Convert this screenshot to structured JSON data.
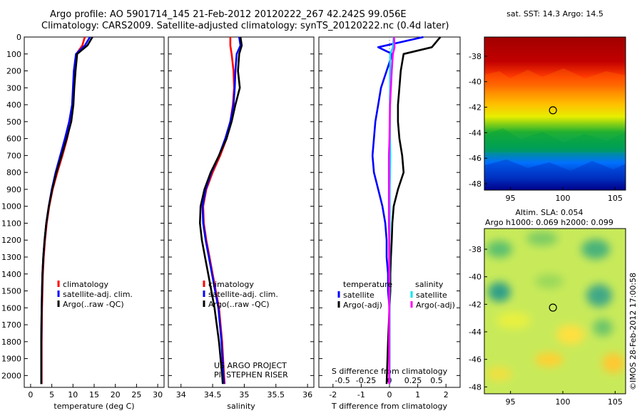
{
  "header": {
    "line1": "Argo profile: AO 5901714_145 21-Feb-2012 20120222_267 42.242S 99.056E",
    "line2": "Climatology: CARS2009. Satellite-adjusted climatology: synTS_20120222.nc (0.4d later)"
  },
  "colors": {
    "climatology": "#ff0000",
    "satellite": "#0000ff",
    "argo": "#000000",
    "sal_satellite": "#00e5ee",
    "sal_argo": "#ff00ff"
  },
  "chart_data": [
    {
      "type": "line",
      "id": "temperature",
      "xlabel": "temperature (deg C)",
      "ylabel": "",
      "xlim": [
        -1.5,
        31.5
      ],
      "xticks": [
        0,
        5,
        10,
        15,
        20,
        25,
        30
      ],
      "ylim": [
        2070,
        0
      ],
      "yticks": [
        0,
        100,
        200,
        300,
        400,
        500,
        600,
        700,
        800,
        900,
        1000,
        1100,
        1200,
        1300,
        1400,
        1500,
        1600,
        1700,
        1800,
        1900,
        2000
      ],
      "legend": [
        "climatology",
        "satellite-adj. clim.",
        "Argo(..raw -QC)"
      ],
      "series": [
        {
          "name": "climatology",
          "color": "#ff0000",
          "x": [
            12.8,
            12.2,
            10.8,
            10.4,
            10.2,
            10.0,
            9.5,
            8.6,
            7.5,
            6.3,
            5.2,
            4.4,
            3.8,
            3.4,
            3.1,
            2.9,
            2.8,
            2.7,
            2.6,
            2.6,
            2.6
          ],
          "y": [
            0,
            50,
            100,
            200,
            300,
            400,
            500,
            600,
            700,
            800,
            900,
            1000,
            1100,
            1200,
            1300,
            1400,
            1500,
            1600,
            1800,
            2000,
            2050
          ]
        },
        {
          "name": "satellite-adj. clim.",
          "color": "#0000ff",
          "x": [
            14.0,
            12.8,
            10.7,
            10.2,
            10.0,
            9.8,
            9.1,
            8.1,
            7.0,
            5.9,
            5.0,
            4.3,
            3.7,
            3.3,
            3.0,
            2.8,
            2.7,
            2.6,
            2.5,
            2.5,
            2.5
          ],
          "y": [
            0,
            50,
            100,
            200,
            300,
            400,
            500,
            600,
            700,
            800,
            900,
            1000,
            1100,
            1200,
            1300,
            1400,
            1500,
            1600,
            1800,
            2000,
            2050
          ]
        },
        {
          "name": "Argo(..raw -QC)",
          "color": "#000000",
          "x": [
            14.6,
            13.4,
            11.0,
            10.6,
            10.3,
            10.1,
            9.6,
            8.5,
            7.3,
            6.1,
            5.1,
            4.3,
            3.7,
            3.3,
            3.0,
            2.8,
            2.7,
            2.6,
            2.5,
            2.5,
            2.5
          ],
          "y": [
            0,
            50,
            100,
            200,
            300,
            400,
            500,
            600,
            700,
            800,
            900,
            1000,
            1100,
            1200,
            1300,
            1400,
            1500,
            1600,
            1800,
            2000,
            2050
          ]
        }
      ]
    },
    {
      "type": "line",
      "id": "salinity",
      "xlabel": "salinity",
      "ylabel": "",
      "xlim": [
        33.8,
        36.1
      ],
      "xticks": [
        34,
        34.5,
        35,
        35.5,
        36
      ],
      "xticklabels": [
        "34",
        "34.5",
        "35",
        "35.5",
        "36"
      ],
      "ylim": [
        2070,
        0
      ],
      "yticks": [
        0,
        100,
        200,
        300,
        400,
        500,
        600,
        700,
        800,
        900,
        1000,
        1100,
        1200,
        1300,
        1400,
        1500,
        1600,
        1700,
        1800,
        1900,
        2000
      ],
      "legend": [
        "climatology",
        "satellite-adj. clim.",
        "Argo(..raw -QC)"
      ],
      "annotations": [
        "US ARGO PROJECT",
        "PI: STEPHEN RISER"
      ],
      "series": [
        {
          "name": "climatology",
          "color": "#ff0000",
          "x": [
            34.78,
            34.78,
            34.8,
            34.83,
            34.84,
            34.82,
            34.78,
            34.72,
            34.62,
            34.5,
            34.4,
            34.35,
            34.36,
            34.4,
            34.45,
            34.5,
            34.55,
            34.6,
            34.65,
            34.68,
            34.69
          ],
          "y": [
            0,
            50,
            100,
            200,
            300,
            400,
            500,
            600,
            700,
            800,
            900,
            1000,
            1100,
            1200,
            1300,
            1400,
            1500,
            1600,
            1800,
            2000,
            2050
          ]
        },
        {
          "name": "satellite-adj. clim.",
          "color": "#0000ff",
          "x": [
            34.92,
            34.94,
            34.88,
            34.86,
            34.85,
            34.83,
            34.78,
            34.7,
            34.6,
            34.48,
            34.39,
            34.34,
            34.35,
            34.39,
            34.44,
            34.49,
            34.54,
            34.59,
            34.64,
            34.67,
            34.68
          ],
          "y": [
            0,
            50,
            100,
            200,
            300,
            400,
            500,
            600,
            700,
            800,
            900,
            1000,
            1100,
            1200,
            1300,
            1400,
            1500,
            1600,
            1800,
            2000,
            2050
          ]
        },
        {
          "name": "Argo(..raw -QC)",
          "color": "#000000",
          "x": [
            34.94,
            34.96,
            34.92,
            34.9,
            34.93,
            34.86,
            34.8,
            34.72,
            34.6,
            34.47,
            34.37,
            34.31,
            34.3,
            34.33,
            34.38,
            34.43,
            34.48,
            34.53,
            34.6,
            34.65,
            34.66
          ],
          "y": [
            0,
            50,
            100,
            200,
            300,
            400,
            500,
            600,
            700,
            800,
            900,
            1000,
            1100,
            1200,
            1300,
            1400,
            1500,
            1600,
            1800,
            2000,
            2050
          ]
        }
      ]
    },
    {
      "type": "line",
      "id": "difference",
      "xlabel": "T difference from climatology",
      "xlabel_top": "S difference from climatology",
      "xlim": [
        -2.5,
        2.5
      ],
      "xticks": [
        -2,
        -1,
        0,
        1,
        2
      ],
      "xticklabels": [
        "-2",
        "-1",
        "0",
        "1",
        "2"
      ],
      "sticks": [
        -0.5,
        -0.25,
        0,
        0.25,
        0.5
      ],
      "sticklabels": [
        "-0.5",
        "-0.25",
        "0",
        "0.25",
        "0.5"
      ],
      "ylim": [
        2070,
        0
      ],
      "yticks": [
        0,
        100,
        200,
        300,
        400,
        500,
        600,
        700,
        800,
        900,
        1000,
        1100,
        1200,
        1300,
        1400,
        1500,
        1600,
        1700,
        1800,
        1900,
        2000
      ],
      "legend_temperature": {
        "title": "temperature",
        "items": [
          "satellite",
          "Argo(-adj)"
        ]
      },
      "legend_salinity": {
        "title": "salinity",
        "items": [
          "satellite",
          "Argo(-adj)"
        ]
      },
      "series": [
        {
          "name": "temperature satellite",
          "color": "#0000ff",
          "x": [
            1.2,
            -0.4,
            0.1,
            -0.1,
            -0.3,
            -0.4,
            -0.5,
            -0.55,
            -0.6,
            -0.55,
            -0.4,
            -0.25,
            -0.15,
            -0.1,
            -0.1,
            -0.05,
            -0.05,
            0.0,
            0.0,
            0.0
          ],
          "y": [
            0,
            60,
            100,
            200,
            300,
            400,
            500,
            600,
            700,
            800,
            900,
            1000,
            1100,
            1200,
            1300,
            1400,
            1500,
            1600,
            1800,
            2050
          ]
        },
        {
          "name": "temperature Argo(-adj)",
          "color": "#000000",
          "x": [
            1.8,
            1.5,
            0.5,
            0.4,
            0.35,
            0.3,
            0.3,
            0.35,
            0.45,
            0.5,
            0.3,
            0.15,
            0.1,
            0.08,
            0.05,
            0.03,
            0.03,
            0.0,
            -0.05,
            -0.1
          ],
          "y": [
            0,
            60,
            100,
            200,
            300,
            400,
            500,
            600,
            700,
            800,
            900,
            1000,
            1100,
            1200,
            1300,
            1400,
            1500,
            1600,
            1800,
            2050
          ]
        },
        {
          "name": "salinity satellite",
          "color": "#00e5ee",
          "x": [
            0.15,
            0.12,
            0.03,
            0.02,
            0.02,
            0.01,
            0.02,
            0.02,
            0.03,
            0.02,
            0.01,
            0.01,
            0.01,
            0.0,
            0.0,
            0.0,
            0.0,
            0.0,
            0.0,
            0.0
          ],
          "y": [
            0,
            60,
            100,
            200,
            300,
            400,
            500,
            600,
            700,
            800,
            900,
            1000,
            1100,
            1200,
            1300,
            1400,
            1500,
            1600,
            1800,
            2050
          ]
        },
        {
          "name": "salinity Argo(-adj)",
          "color": "#ff00ff",
          "x": [
            0.16,
            0.18,
            0.12,
            0.08,
            0.05,
            0.02,
            0.01,
            0.0,
            -0.02,
            -0.02,
            -0.02,
            -0.02,
            -0.02,
            -0.01,
            -0.01,
            -0.01,
            -0.01,
            -0.01,
            -0.01,
            -0.01
          ],
          "y": [
            0,
            60,
            100,
            200,
            300,
            400,
            500,
            600,
            700,
            800,
            900,
            1000,
            1100,
            1200,
            1300,
            1400,
            1500,
            1600,
            1800,
            2050
          ]
        }
      ]
    },
    {
      "type": "heatmap",
      "id": "sst_map",
      "title": "sat. SST: 14.3 Argo: 14.5",
      "xlim": [
        92.5,
        106
      ],
      "xticks": [
        95,
        100,
        105
      ],
      "ylim": [
        -48.5,
        -36.5
      ],
      "yticks": [
        -38,
        -40,
        -42,
        -44,
        -46,
        -48
      ],
      "marker": {
        "lon": 99.056,
        "lat": -42.242
      }
    },
    {
      "type": "heatmap",
      "id": "sla_map",
      "title": "Altim. SLA: 0.054",
      "subtitle": "Argo h1000: 0.069 h2000: 0.099",
      "xlim": [
        92.5,
        106
      ],
      "xticks": [
        95,
        100,
        105
      ],
      "ylim": [
        -48.5,
        -36.5
      ],
      "yticks": [
        -38,
        -40,
        -42,
        -44,
        -46,
        -48
      ],
      "marker": {
        "lon": 99.056,
        "lat": -42.242
      }
    }
  ],
  "credit": "©IMOS 28-Feb-2012 17:00:58"
}
